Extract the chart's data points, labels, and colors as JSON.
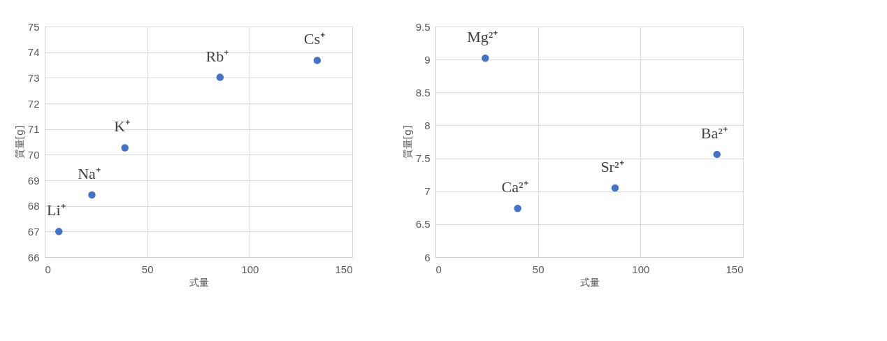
{
  "chart_data": [
    {
      "type": "scatter",
      "xlabel": "式量",
      "ylabel": "質量[g]",
      "xlim": [
        0,
        150
      ],
      "xticks": [
        0,
        50,
        100,
        150
      ],
      "ylim": [
        66,
        75
      ],
      "yticks": [
        66,
        67,
        68,
        69,
        70,
        71,
        72,
        73,
        74,
        75
      ],
      "grid": true,
      "marker": "circle",
      "series": [
        {
          "color": "#4472c4",
          "x": [
            6.9,
            23.0,
            39.1,
            85.5,
            132.9
          ],
          "values": [
            67.0,
            68.43,
            70.27,
            73.02,
            73.68
          ]
        }
      ],
      "annotations": [
        {
          "text": "Li⁺",
          "x": 6.9,
          "y": 67.0
        },
        {
          "text": "Na⁺",
          "x": 23.0,
          "y": 68.43
        },
        {
          "text": "K⁺",
          "x": 39.1,
          "y": 70.27
        },
        {
          "text": "Rb⁺",
          "x": 85.5,
          "y": 73.02
        },
        {
          "text": "Cs⁺",
          "x": 132.9,
          "y": 73.68
        }
      ]
    },
    {
      "type": "scatter",
      "xlabel": "式量",
      "ylabel": "質量[g]",
      "xlim": [
        0,
        150
      ],
      "xticks": [
        0,
        50,
        100,
        150
      ],
      "ylim": [
        6,
        9.5
      ],
      "yticks": [
        6,
        6.5,
        7,
        7.5,
        8,
        8.5,
        9,
        9.5
      ],
      "grid": true,
      "marker": "circle",
      "series": [
        {
          "color": "#4472c4",
          "x": [
            24.3,
            40.1,
            87.6,
            137.3
          ],
          "values": [
            9.02,
            6.74,
            7.05,
            7.56
          ]
        }
      ],
      "annotations": [
        {
          "text": "Mg²⁺",
          "x": 24.3,
          "y": 9.02
        },
        {
          "text": "Ca²⁺",
          "x": 40.1,
          "y": 6.74
        },
        {
          "text": "Sr²⁺",
          "x": 87.6,
          "y": 7.05
        },
        {
          "text": "Ba²⁺",
          "x": 137.3,
          "y": 7.56
        }
      ]
    }
  ]
}
